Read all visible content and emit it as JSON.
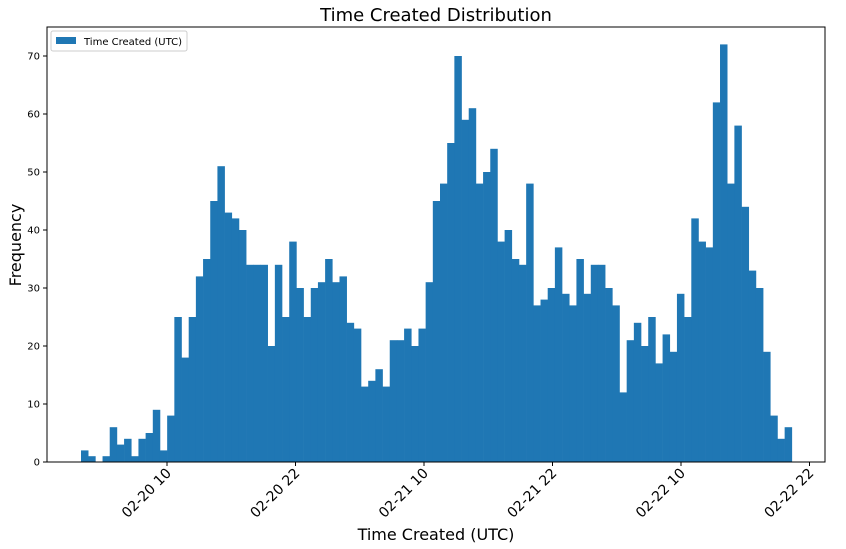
{
  "chart_data": {
    "type": "bar",
    "title": "Time Created Distribution",
    "xlabel": "Time Created (UTC)",
    "ylabel": "Frequency",
    "legend": {
      "label": "Time Created (UTC)",
      "placement": "top-left"
    },
    "grid": false,
    "ylim": [
      0,
      75
    ],
    "y_ticks": [
      0,
      10,
      20,
      30,
      40,
      50,
      60,
      70
    ],
    "x_tick_labels": [
      "02-20 10",
      "02-20 22",
      "02-21 10",
      "02-21 22",
      "02-22 10",
      "02-22 22"
    ],
    "bar_color": "#1f77b4",
    "values": [
      2,
      1,
      0,
      1,
      6,
      3,
      4,
      1,
      4,
      5,
      9,
      2,
      8,
      25,
      18,
      25,
      32,
      35,
      45,
      51,
      43,
      42,
      40,
      34,
      34,
      34,
      20,
      34,
      25,
      38,
      30,
      25,
      30,
      31,
      35,
      31,
      32,
      24,
      23,
      13,
      14,
      16,
      13,
      21,
      21,
      23,
      20,
      23,
      31,
      45,
      48,
      55,
      70,
      59,
      61,
      48,
      50,
      54,
      38,
      40,
      35,
      34,
      48,
      27,
      28,
      30,
      37,
      29,
      27,
      35,
      29,
      34,
      34,
      30,
      27,
      12,
      21,
      24,
      20,
      25,
      17,
      22,
      19,
      29,
      25,
      42,
      38,
      37,
      62,
      72,
      48,
      58,
      44,
      33,
      30,
      19,
      8,
      4,
      6
    ]
  }
}
